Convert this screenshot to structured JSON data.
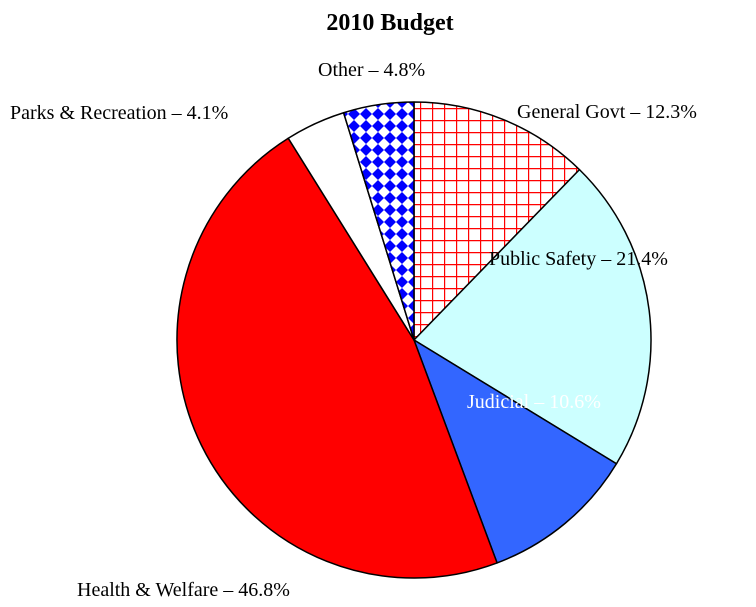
{
  "chart_data": {
    "type": "pie",
    "title": "2010 Budget",
    "slices": [
      {
        "label": "General Govt – 12.3%",
        "value": 12.3,
        "color": "#ff0000",
        "fill": "pattern-grid"
      },
      {
        "label": "Public Safety – 21.4%",
        "value": 21.4,
        "color": "#ccffff",
        "fill": "solid"
      },
      {
        "label": "Judicial – 10.6%",
        "value": 10.6,
        "color": "#3366ff",
        "fill": "solid"
      },
      {
        "label": "Health & Welfare – 46.8%",
        "value": 46.8,
        "color": "#ff0000",
        "fill": "solid"
      },
      {
        "label": "Parks & Recreation – 4.1%",
        "value": 4.1,
        "color": "#ffffff",
        "fill": "solid"
      },
      {
        "label": "Other – 4.8%",
        "value": 4.8,
        "color": "#0000ff",
        "fill": "pattern-diamond"
      }
    ],
    "legend": "none"
  }
}
